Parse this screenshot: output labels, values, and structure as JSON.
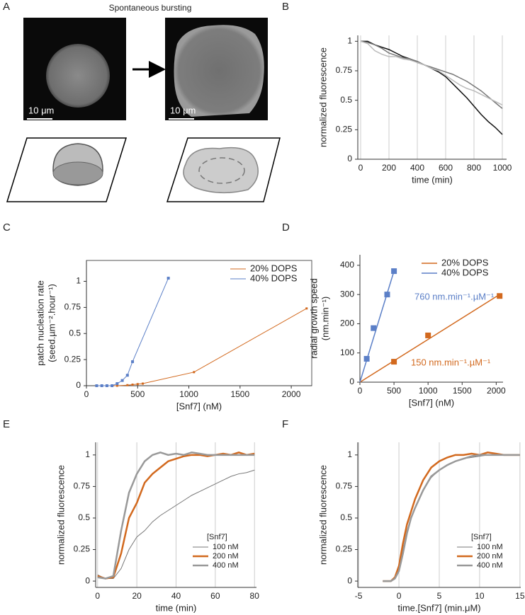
{
  "panel_labels": [
    "A",
    "B",
    "C",
    "D",
    "E",
    "F"
  ],
  "panel_a": {
    "title": "Spontaneous bursting",
    "scale_bars": [
      "10 μm",
      "10 μm"
    ]
  },
  "chart_data": [
    {
      "type": "line",
      "ylabel": [
        "normalized fluorescence"
      ],
      "xlabel": "time (min)",
      "xlim": [
        -20,
        1030
      ],
      "ylim": [
        0,
        1.05
      ],
      "xticks": [
        0,
        200,
        400,
        600,
        800,
        1000
      ],
      "yticks": [
        0,
        0.25,
        0.5,
        0.75,
        1
      ],
      "grid": "x",
      "x": [
        0,
        50,
        100,
        150,
        200,
        250,
        300,
        350,
        400,
        450,
        500,
        550,
        600,
        650,
        700,
        750,
        800,
        850,
        900,
        950,
        1000
      ],
      "series": [
        {
          "color": "#111111",
          "linewidth": 1.5,
          "values": [
            1,
            1,
            0.97,
            0.95,
            0.93,
            0.9,
            0.87,
            0.85,
            0.82,
            0.8,
            0.77,
            0.74,
            0.7,
            0.64,
            0.58,
            0.52,
            0.45,
            0.38,
            0.32,
            0.27,
            0.21
          ]
        },
        {
          "color": "#777777",
          "linewidth": 1.5,
          "values": [
            1,
            0.99,
            0.97,
            0.94,
            0.9,
            0.88,
            0.86,
            0.85,
            0.83,
            0.8,
            0.78,
            0.76,
            0.74,
            0.72,
            0.69,
            0.66,
            0.62,
            0.58,
            0.53,
            0.48,
            0.43
          ]
        },
        {
          "color": "#bbbbbb",
          "linewidth": 1.5,
          "values": [
            1,
            0.98,
            0.92,
            0.89,
            0.87,
            0.87,
            0.85,
            0.84,
            0.82,
            0.8,
            0.77,
            0.75,
            0.71,
            0.67,
            0.63,
            0.6,
            0.58,
            0.55,
            0.52,
            0.49,
            0.46
          ]
        }
      ]
    },
    {
      "type": "line",
      "ylabel": [
        "patch nucleation rate",
        "(seed.µm⁻².hour⁻¹)"
      ],
      "xlabel": "[Snf7] (nM)",
      "xlim": [
        0,
        2200
      ],
      "ylim": [
        0,
        1.2
      ],
      "xticks": [
        0,
        500,
        1000,
        1500,
        2000
      ],
      "yticks": [
        0,
        0.25,
        0.5,
        0.75,
        1
      ],
      "frame": true,
      "legend": "upper right",
      "series": [
        {
          "name": "20% DOPS",
          "color": "#d2691e",
          "linewidth": 1,
          "marker": "square",
          "markersize": 3,
          "x": [
            100,
            200,
            300,
            400,
            450,
            500,
            550,
            1050,
            2150
          ],
          "values": [
            0,
            0,
            0,
            0.005,
            0.01,
            0.015,
            0.02,
            0.13,
            0.74
          ]
        },
        {
          "name": "40% DOPS",
          "color": "#5b7fc7",
          "linewidth": 1,
          "marker": "square",
          "markersize": 4,
          "x": [
            100,
            150,
            200,
            250,
            300,
            350,
            400,
            450,
            800
          ],
          "values": [
            0,
            0,
            0,
            0,
            0.02,
            0.05,
            0.1,
            0.23,
            1.03
          ]
        }
      ]
    },
    {
      "type": "scatter",
      "ylabel": [
        "radial growth speed",
        "(nm.min⁻¹)"
      ],
      "xlabel": "[Snf7] (nM)",
      "xlim": [
        0,
        2100
      ],
      "ylim": [
        0,
        436
      ],
      "xticks": [
        0,
        500,
        1000,
        1500,
        2000
      ],
      "yticks": [
        0,
        100,
        200,
        300,
        400
      ],
      "legend": "upper right",
      "series": [
        {
          "name": "20% DOPS",
          "color": "#d2691e",
          "marker": "square",
          "markersize": 8,
          "x": [
            500,
            1000,
            2050
          ],
          "values": [
            70,
            160,
            295
          ],
          "fit": {
            "x": [
              0,
              2050
            ],
            "values": [
              0,
              300
            ]
          }
        },
        {
          "name": "40% DOPS",
          "color": "#5b7fc7",
          "marker": "square",
          "markersize": 8,
          "x": [
            100,
            200,
            400,
            500
          ],
          "values": [
            80,
            185,
            300,
            380
          ],
          "fit": {
            "x": [
              0,
              500
            ],
            "values": [
              0,
              380
            ]
          }
        }
      ],
      "annotations": [
        {
          "text": "760 nm.min⁻¹.µM⁻¹",
          "color": "#5b7fc7"
        },
        {
          "text": "150 nm.min⁻¹.µM⁻¹",
          "color": "#d2691e"
        }
      ]
    },
    {
      "type": "line",
      "ylabel": [
        "normalized fluorescence"
      ],
      "xlabel": "time (min)",
      "xlim": [
        -1,
        81
      ],
      "ylim": [
        -0.05,
        1.1
      ],
      "xticks": [
        0,
        20,
        40,
        60,
        80
      ],
      "yticks": [
        0,
        0.25,
        0.5,
        0.75,
        1
      ],
      "grid": "x",
      "legend": "lower right",
      "legend_title": "[Snf7]",
      "x": [
        0,
        4,
        8,
        12,
        16,
        20,
        24,
        28,
        32,
        36,
        40,
        44,
        48,
        52,
        56,
        60,
        64,
        68,
        72,
        76,
        80
      ],
      "series": [
        {
          "name": "100 nM",
          "color": "#777777",
          "linewidth": 1,
          "values": [
            0.05,
            0.02,
            0.02,
            0.1,
            0.25,
            0.35,
            0.4,
            0.47,
            0.52,
            0.56,
            0.6,
            0.64,
            0.68,
            0.71,
            0.74,
            0.77,
            0.8,
            0.83,
            0.85,
            0.86,
            0.88
          ]
        },
        {
          "name": "200 nM",
          "color": "#d2691e",
          "linewidth": 2.5,
          "values": [
            0.04,
            0.02,
            0.03,
            0.22,
            0.5,
            0.62,
            0.78,
            0.85,
            0.9,
            0.95,
            0.97,
            0.99,
            1,
            1,
            0.99,
            1,
            1.01,
            1,
            1.02,
            1,
            1.01
          ]
        },
        {
          "name": "400 nM",
          "color": "#999999",
          "linewidth": 2.5,
          "values": [
            0.03,
            0.02,
            0.04,
            0.4,
            0.7,
            0.85,
            0.95,
            1,
            1.02,
            1,
            1.01,
            1,
            1.02,
            1.01,
            1,
            1,
            1,
            1,
            1,
            1,
            1
          ]
        }
      ]
    },
    {
      "type": "line",
      "ylabel": [
        "normalized fluorescence"
      ],
      "xlabel": "time.[Snf7] (min.μM)",
      "xlim": [
        -5.1,
        15.1
      ],
      "ylim": [
        -0.05,
        1.1
      ],
      "xticks": [
        -5,
        0,
        5,
        10,
        15
      ],
      "yticks": [
        0,
        0.25,
        0.5,
        0.75,
        1
      ],
      "grid": "x",
      "legend": "lower right",
      "legend_title": "[Snf7]",
      "x": [
        -2,
        -1,
        -0.5,
        0,
        0.5,
        1,
        1.5,
        2,
        3,
        4,
        5,
        6,
        7,
        8,
        9,
        10,
        11,
        12,
        13,
        14,
        15
      ],
      "series": [
        {
          "name": "100 nM",
          "color": "#777777",
          "linewidth": 1,
          "values": [
            0,
            0,
            0.02,
            0.1,
            0.25,
            0.4,
            0.5,
            0.58,
            0.72,
            0.82,
            0.88,
            0.92,
            0.95,
            0.97,
            0.98,
            0.99,
            1,
            1,
            1,
            1,
            1
          ]
        },
        {
          "name": "200 nM",
          "color": "#d2691e",
          "linewidth": 2.5,
          "values": [
            0,
            0,
            0.03,
            0.12,
            0.3,
            0.45,
            0.55,
            0.65,
            0.8,
            0.9,
            0.95,
            0.98,
            1,
            1,
            1.01,
            1,
            1.02,
            1.01,
            1,
            1,
            1
          ]
        },
        {
          "name": "400 nM",
          "color": "#999999",
          "linewidth": 2.5,
          "values": [
            0,
            0,
            0.02,
            0.08,
            0.22,
            0.38,
            0.5,
            0.58,
            0.72,
            0.83,
            0.88,
            0.92,
            0.95,
            0.97,
            0.99,
            1,
            1,
            1,
            1,
            1,
            1
          ]
        }
      ]
    }
  ]
}
